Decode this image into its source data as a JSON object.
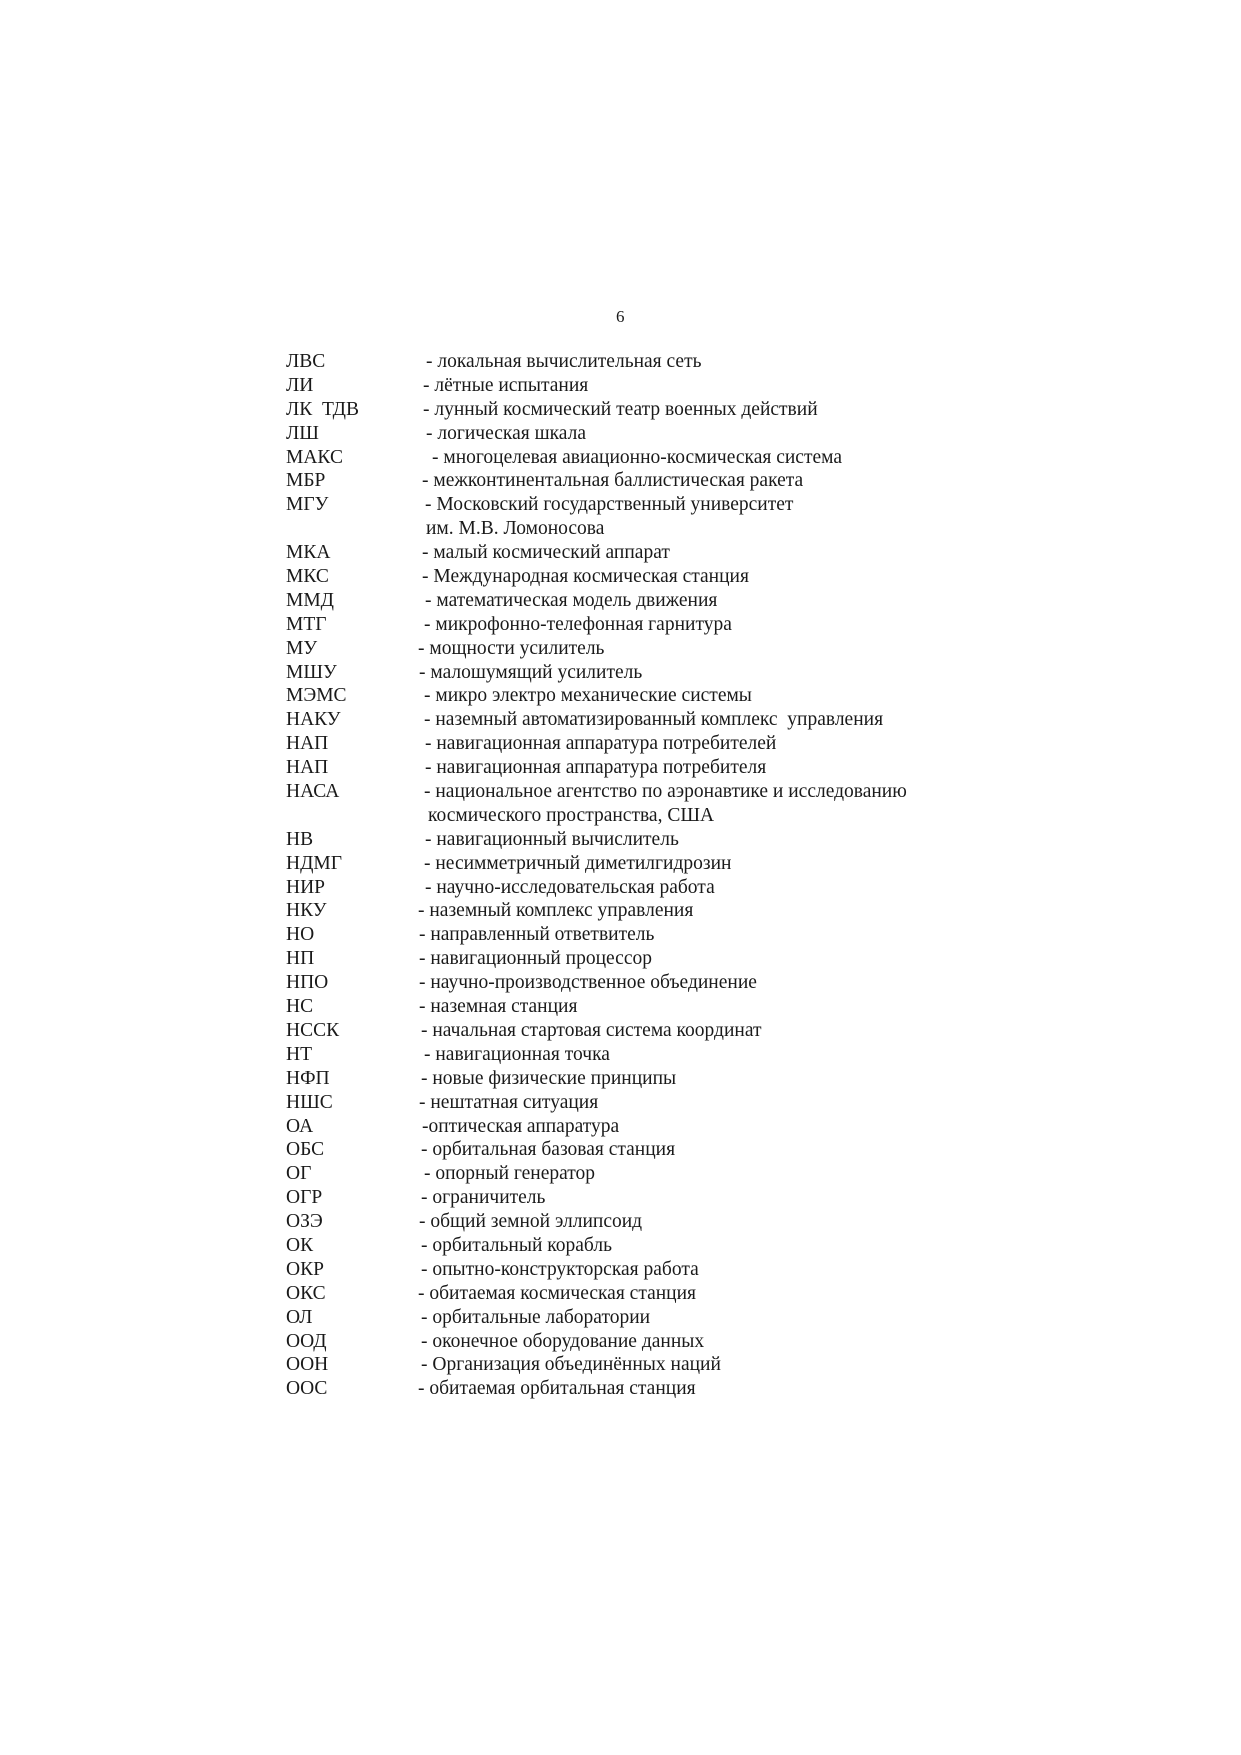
{
  "page_number": "6",
  "entries": [
    {
      "abbr": "ЛВС",
      "definition": "- локальная вычислительная сеть"
    },
    {
      "abbr": "ЛИ",
      "definition": "- лётные испытания"
    },
    {
      "abbr": "ЛК  ТДВ",
      "definition": "- лунный космический театр военных действий"
    },
    {
      "abbr": "ЛШ",
      "definition": "- логическая шкала"
    },
    {
      "abbr": "МАКС",
      "definition": "- многоцелевая авиационно-космическая система"
    },
    {
      "abbr": "МБР",
      "definition": "- межконтинентальная баллистическая ракета"
    },
    {
      "abbr": "МГУ",
      "definition": "- Московский государственный университет",
      "continuation": "им. М.В. Ломоносова"
    },
    {
      "abbr": "МКА",
      "definition": "- малый космический аппарат"
    },
    {
      "abbr": "МКС",
      "definition": "- Международная космическая станция"
    },
    {
      "abbr": "ММД",
      "definition": "- математическая модель движения"
    },
    {
      "abbr": "МТГ",
      "definition": "- микрофонно-телефонная гарнитура"
    },
    {
      "abbr": "МУ",
      "definition": "- мощности усилитель"
    },
    {
      "abbr": "МШУ",
      "definition": "- малошумящий усилитель"
    },
    {
      "abbr": "МЭМС",
      "definition": "- микро электро механические системы"
    },
    {
      "abbr": "НАКУ",
      "definition": "- наземный автоматизированный комплекс  управления"
    },
    {
      "abbr": "НАП",
      "definition": "- навигационная аппаратура потребителей"
    },
    {
      "abbr": "НАП",
      "definition": "- навигационная аппаратура потребителя"
    },
    {
      "abbr": "НАСА",
      "definition": "- национальное агентство по аэронавтике и исследованию",
      "continuation": "космического пространства, США"
    },
    {
      "abbr": "НВ",
      "definition": "- навигационный вычислитель"
    },
    {
      "abbr": "НДМГ",
      "definition": "- несимметричный диметилгидрозин"
    },
    {
      "abbr": "НИР",
      "definition": "- научно-исследовательская работа"
    },
    {
      "abbr": "НКУ",
      "definition": "- наземный комплекс управления"
    },
    {
      "abbr": "НО",
      "definition": "- направленный ответвитель"
    },
    {
      "abbr": "НП",
      "definition": "- навигационный процессор"
    },
    {
      "abbr": "НПО",
      "definition": "- научно-производственное объединение"
    },
    {
      "abbr": "НС",
      "definition": "- наземная станция"
    },
    {
      "abbr": "НССК",
      "definition": "- начальная стартовая система координат"
    },
    {
      "abbr": "НТ",
      "definition": "- навигационная точка"
    },
    {
      "abbr": "НФП",
      "definition": "- новые физические принципы"
    },
    {
      "abbr": "НШС",
      "definition": "- нештатная ситуация"
    },
    {
      "abbr": "ОА",
      "definition": "-оптическая аппаратура"
    },
    {
      "abbr": "ОБС",
      "definition": "- орбитальная базовая станция"
    },
    {
      "abbr": "ОГ",
      "definition": "- опорный генератор"
    },
    {
      "abbr": "ОГР",
      "definition": "- ограничитель"
    },
    {
      "abbr": "ОЗЭ",
      "definition": "- общий земной эллипсоид"
    },
    {
      "abbr": "ОК",
      "definition": "- орбитальный корабль"
    },
    {
      "abbr": "ОКР",
      "definition": "- опытно-конструкторская работа"
    },
    {
      "abbr": "ОКС",
      "definition": "- обитаемая космическая станция"
    },
    {
      "abbr": "ОЛ",
      "definition": "- орбитальные лаборатории"
    },
    {
      "abbr": "ООД",
      "definition": "- оконечное оборудование данных"
    },
    {
      "abbr": "ООН",
      "definition": "- Организация объединённых наций"
    },
    {
      "abbr": "ООС",
      "definition": "- обитаемая орбитальная станция"
    }
  ]
}
